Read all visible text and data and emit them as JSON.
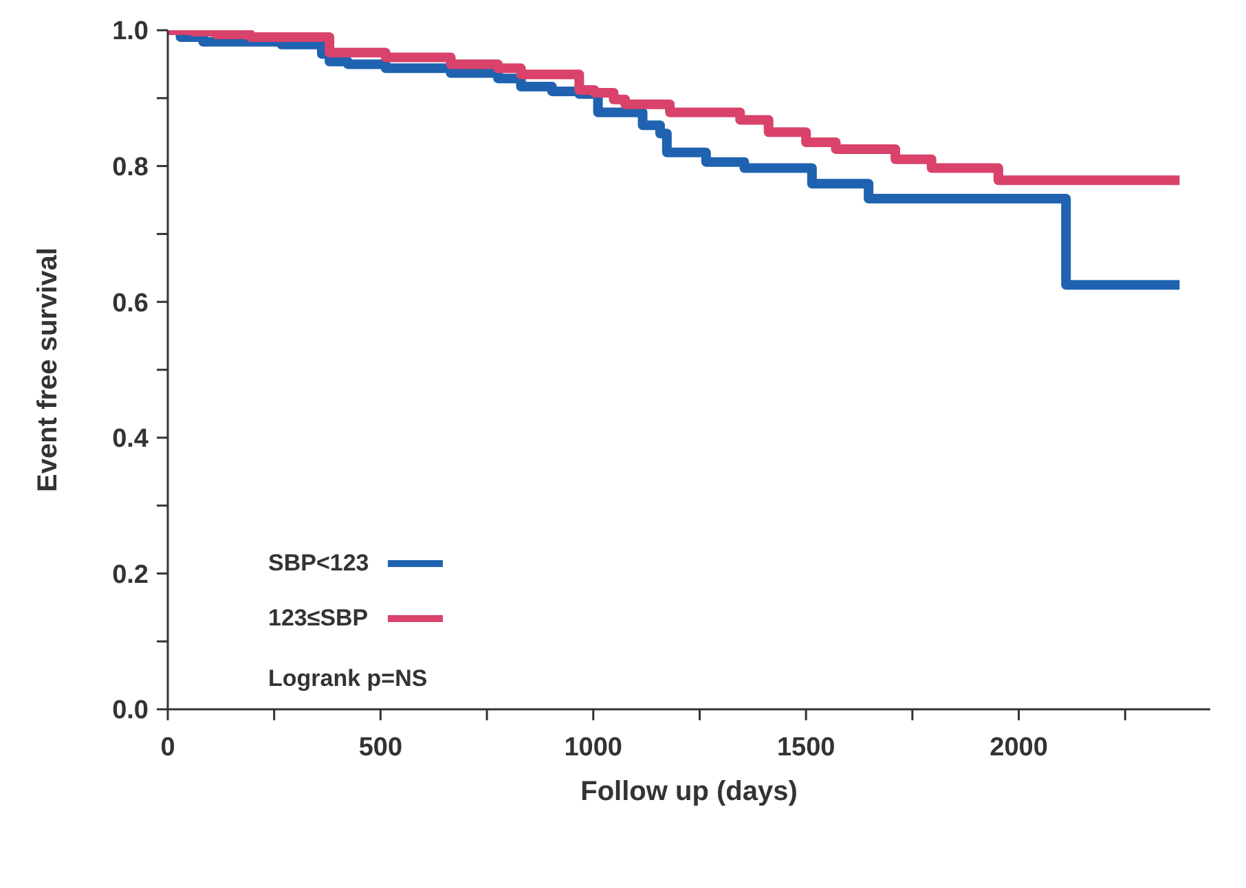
{
  "chart_data": {
    "type": "step",
    "xlabel": "Follow up (days)",
    "ylabel": "Event free survival",
    "xlim": [
      0,
      2450
    ],
    "ylim": [
      0,
      1.0
    ],
    "xticks": [
      0,
      {
        "value": 250,
        "label": null
      },
      500,
      {
        "value": 750,
        "label": null
      },
      1000,
      {
        "value": 1250,
        "label": null
      },
      1500,
      {
        "value": 1750,
        "label": null
      },
      2000,
      {
        "value": 2250,
        "label": null
      }
    ],
    "yticks": [
      {
        "value": 0,
        "label": "0.0"
      },
      {
        "value": 0.1,
        "label": null
      },
      0.2,
      {
        "value": 0.3,
        "label": null
      },
      0.4,
      {
        "value": 0.5,
        "label": null
      },
      0.6,
      {
        "value": 0.7,
        "label": null
      },
      0.8,
      {
        "value": 0.9,
        "label": null
      },
      {
        "value": 1.0,
        "label": "1.0"
      }
    ],
    "grid": false,
    "legend": "bottom left",
    "marker": "none",
    "line_style": "solid",
    "annotations": [
      "Logrank p=NS"
    ],
    "series": [
      {
        "name": "SBP<123",
        "color": "#1f63b0",
        "x": [
          0,
          30,
          83,
          267,
          362,
          380,
          423,
          512,
          665,
          776,
          830,
          903,
          967,
          1011,
          1116,
          1157,
          1173,
          1265,
          1355,
          1514,
          1647,
          2111,
          2378
        ],
        "values": [
          1.0,
          0.99,
          0.983,
          0.979,
          0.965,
          0.954,
          0.95,
          0.944,
          0.937,
          0.929,
          0.917,
          0.91,
          0.906,
          0.879,
          0.86,
          0.848,
          0.82,
          0.806,
          0.797,
          0.774,
          0.752,
          0.625,
          0.625
        ]
      },
      {
        "name": "123≤SBP",
        "color": "#d9426a",
        "x": [
          0,
          60,
          114,
          194,
          380,
          512,
          665,
          776,
          830,
          967,
          1003,
          1048,
          1075,
          1180,
          1345,
          1412,
          1500,
          1570,
          1710,
          1795,
          1952,
          2378
        ],
        "values": [
          1.0,
          0.998,
          0.994,
          0.99,
          0.967,
          0.96,
          0.95,
          0.944,
          0.935,
          0.912,
          0.908,
          0.898,
          0.891,
          0.879,
          0.868,
          0.85,
          0.835,
          0.825,
          0.81,
          0.797,
          0.779,
          0.779
        ]
      }
    ]
  }
}
